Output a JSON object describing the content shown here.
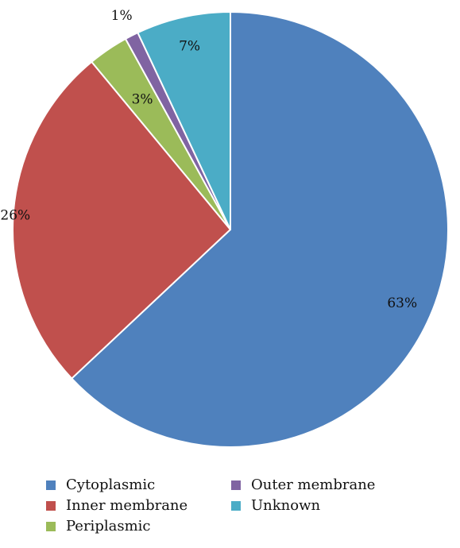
{
  "chart_data": {
    "type": "pie",
    "categories": [
      "Cytoplasmic",
      "Inner membrane",
      "Periplasmic",
      "Outer membrane",
      "Unknown"
    ],
    "values": [
      63,
      26,
      3,
      1,
      7
    ],
    "labels": [
      "63%",
      "26%",
      "3%",
      "1%",
      "7%"
    ],
    "colors": [
      "#4f81bd",
      "#c0504d",
      "#9bbb59",
      "#8064a2",
      "#4bacc6"
    ],
    "start": "top",
    "direction": "clockwise",
    "legend": {
      "position": "bottom",
      "items": [
        "Cytoplasmic",
        "Inner membrane",
        "Periplasmic",
        "Outer membrane",
        "Unknown"
      ]
    },
    "title": "",
    "xlabel": "",
    "ylabel": ""
  }
}
